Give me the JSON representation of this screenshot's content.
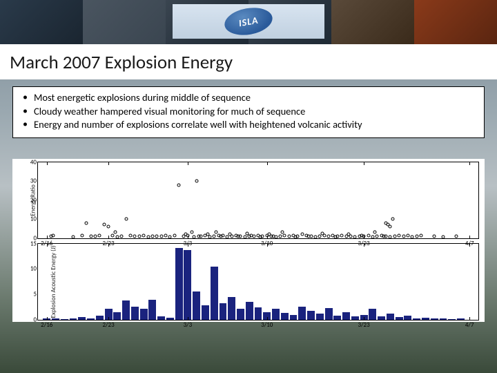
{
  "header": {
    "logo_text": "ISLA"
  },
  "title": "March 2007 Explosion Energy",
  "bullets": [
    "Most energetic explosions during middle of sequence",
    "Cloudy weather hampered visual monitoring for much of sequence",
    "Energy and number of explosions correlate well with heightened volcanic activity"
  ],
  "x_axis": {
    "dates": [
      "2/16",
      "2/23",
      "3/3",
      "3/10",
      "3/23",
      "4/7"
    ],
    "positions_pct": [
      2,
      16,
      34,
      52,
      74,
      98
    ]
  },
  "scatter_chart": {
    "y_label": "Energy Ratio",
    "ylim": [
      0,
      40
    ],
    "y_ticks": [
      0,
      10,
      20,
      30,
      40
    ],
    "marker_border": "#000000",
    "points": [
      {
        "x": 3,
        "y": 1
      },
      {
        "x": 3.5,
        "y": 1.5
      },
      {
        "x": 8,
        "y": 0.8
      },
      {
        "x": 10,
        "y": 1.2
      },
      {
        "x": 11,
        "y": 8
      },
      {
        "x": 12,
        "y": 1
      },
      {
        "x": 13,
        "y": 0.9
      },
      {
        "x": 14,
        "y": 1.3
      },
      {
        "x": 15,
        "y": 7
      },
      {
        "x": 16,
        "y": 6
      },
      {
        "x": 17,
        "y": 1.5
      },
      {
        "x": 17.5,
        "y": 3
      },
      {
        "x": 18,
        "y": 0.8
      },
      {
        "x": 19,
        "y": 1
      },
      {
        "x": 20,
        "y": 10
      },
      {
        "x": 21,
        "y": 1.2
      },
      {
        "x": 22,
        "y": 0.9
      },
      {
        "x": 23,
        "y": 1
      },
      {
        "x": 24,
        "y": 1.3
      },
      {
        "x": 25,
        "y": 0.8
      },
      {
        "x": 26,
        "y": 1.1
      },
      {
        "x": 27,
        "y": 1
      },
      {
        "x": 28,
        "y": 0.9
      },
      {
        "x": 29,
        "y": 1.2
      },
      {
        "x": 30,
        "y": 0.8
      },
      {
        "x": 31,
        "y": 1.5
      },
      {
        "x": 32,
        "y": 28
      },
      {
        "x": 33,
        "y": 1
      },
      {
        "x": 33.5,
        "y": 2
      },
      {
        "x": 34,
        "y": 1.3
      },
      {
        "x": 35,
        "y": 3
      },
      {
        "x": 35.5,
        "y": 0.8
      },
      {
        "x": 36,
        "y": 30
      },
      {
        "x": 36.5,
        "y": 1
      },
      {
        "x": 37,
        "y": 0.9
      },
      {
        "x": 38,
        "y": 1.4
      },
      {
        "x": 38.5,
        "y": 2
      },
      {
        "x": 39,
        "y": 0.8
      },
      {
        "x": 40,
        "y": 1
      },
      {
        "x": 40.5,
        "y": 3
      },
      {
        "x": 41,
        "y": 1.2
      },
      {
        "x": 41.5,
        "y": 0.9
      },
      {
        "x": 42,
        "y": 1.5
      },
      {
        "x": 43,
        "y": 0.8
      },
      {
        "x": 43.5,
        "y": 2
      },
      {
        "x": 44,
        "y": 1
      },
      {
        "x": 45,
        "y": 1.3
      },
      {
        "x": 45.5,
        "y": 0.9
      },
      {
        "x": 46,
        "y": 1.1
      },
      {
        "x": 47,
        "y": 0.8
      },
      {
        "x": 47.5,
        "y": 2.5
      },
      {
        "x": 48,
        "y": 1
      },
      {
        "x": 48.5,
        "y": 1.2
      },
      {
        "x": 49,
        "y": 0.9
      },
      {
        "x": 50,
        "y": 1.4
      },
      {
        "x": 50.5,
        "y": 0.8
      },
      {
        "x": 51,
        "y": 1
      },
      {
        "x": 52,
        "y": 1.3
      },
      {
        "x": 52.5,
        "y": 2
      },
      {
        "x": 53,
        "y": 0.9
      },
      {
        "x": 53.5,
        "y": 1.1
      },
      {
        "x": 54,
        "y": 0.8
      },
      {
        "x": 55,
        "y": 1
      },
      {
        "x": 55.5,
        "y": 3
      },
      {
        "x": 56,
        "y": 1.2
      },
      {
        "x": 57,
        "y": 0.9
      },
      {
        "x": 58,
        "y": 1.4
      },
      {
        "x": 58.5,
        "y": 0.8
      },
      {
        "x": 59,
        "y": 1
      },
      {
        "x": 60,
        "y": 2
      },
      {
        "x": 61,
        "y": 1.3
      },
      {
        "x": 61.5,
        "y": 0.9
      },
      {
        "x": 62,
        "y": 1.1
      },
      {
        "x": 63,
        "y": 0.8
      },
      {
        "x": 64,
        "y": 1
      },
      {
        "x": 64.5,
        "y": 2.5
      },
      {
        "x": 65,
        "y": 1.2
      },
      {
        "x": 66,
        "y": 0.9
      },
      {
        "x": 67,
        "y": 1.4
      },
      {
        "x": 67.5,
        "y": 0.8
      },
      {
        "x": 68,
        "y": 1
      },
      {
        "x": 69,
        "y": 1.3
      },
      {
        "x": 70,
        "y": 0.9
      },
      {
        "x": 70.5,
        "y": 2
      },
      {
        "x": 71,
        "y": 1.1
      },
      {
        "x": 72,
        "y": 0.8
      },
      {
        "x": 73,
        "y": 1
      },
      {
        "x": 73.5,
        "y": 1.2
      },
      {
        "x": 74,
        "y": 0.9
      },
      {
        "x": 75,
        "y": 1.4
      },
      {
        "x": 76,
        "y": 0.8
      },
      {
        "x": 76.5,
        "y": 3
      },
      {
        "x": 77,
        "y": 1
      },
      {
        "x": 78,
        "y": 1.3
      },
      {
        "x": 78.5,
        "y": 0.9
      },
      {
        "x": 79,
        "y": 1.1
      },
      {
        "x": 79,
        "y": 8
      },
      {
        "x": 79.5,
        "y": 7
      },
      {
        "x": 80,
        "y": 0.8
      },
      {
        "x": 80,
        "y": 6
      },
      {
        "x": 80.5,
        "y": 10
      },
      {
        "x": 81,
        "y": 1
      },
      {
        "x": 82,
        "y": 1.2
      },
      {
        "x": 83,
        "y": 0.9
      },
      {
        "x": 84,
        "y": 1.4
      },
      {
        "x": 85,
        "y": 0.8
      },
      {
        "x": 86,
        "y": 1
      },
      {
        "x": 87,
        "y": 1.3
      },
      {
        "x": 90,
        "y": 1
      },
      {
        "x": 92,
        "y": 0.8
      },
      {
        "x": 95,
        "y": 1
      }
    ]
  },
  "bar_chart": {
    "y_label": "Explosion Acoustic Energy (J)",
    "ylim": [
      0,
      15
    ],
    "y_ticks": [
      0,
      5,
      10,
      15
    ],
    "bar_color": "#1a237e",
    "bar_width_pct": 1.7,
    "bars": [
      {
        "x": 2,
        "y": 0.3
      },
      {
        "x": 4,
        "y": 0.2
      },
      {
        "x": 6,
        "y": 0.1
      },
      {
        "x": 8,
        "y": 0.2
      },
      {
        "x": 10,
        "y": 0.5
      },
      {
        "x": 12,
        "y": 0.3
      },
      {
        "x": 14,
        "y": 0.8
      },
      {
        "x": 16,
        "y": 2.2
      },
      {
        "x": 18,
        "y": 1.5
      },
      {
        "x": 20,
        "y": 3.8
      },
      {
        "x": 22,
        "y": 2.5
      },
      {
        "x": 24,
        "y": 2.1
      },
      {
        "x": 26,
        "y": 3.9
      },
      {
        "x": 28,
        "y": 0.6
      },
      {
        "x": 30,
        "y": 0.4
      },
      {
        "x": 32,
        "y": 14.2
      },
      {
        "x": 34,
        "y": 13.8
      },
      {
        "x": 36,
        "y": 5.5
      },
      {
        "x": 38,
        "y": 2.8
      },
      {
        "x": 40,
        "y": 10.5
      },
      {
        "x": 42,
        "y": 3.2
      },
      {
        "x": 44,
        "y": 4.5
      },
      {
        "x": 46,
        "y": 2.1
      },
      {
        "x": 48,
        "y": 3.5
      },
      {
        "x": 50,
        "y": 2.4
      },
      {
        "x": 52,
        "y": 1.5
      },
      {
        "x": 54,
        "y": 2.2
      },
      {
        "x": 56,
        "y": 1.3
      },
      {
        "x": 58,
        "y": 0.9
      },
      {
        "x": 60,
        "y": 2.5
      },
      {
        "x": 62,
        "y": 1.8
      },
      {
        "x": 64,
        "y": 1.2
      },
      {
        "x": 66,
        "y": 2.3
      },
      {
        "x": 68,
        "y": 0.8
      },
      {
        "x": 70,
        "y": 1.5
      },
      {
        "x": 72,
        "y": 0.6
      },
      {
        "x": 74,
        "y": 0.9
      },
      {
        "x": 76,
        "y": 2.1
      },
      {
        "x": 78,
        "y": 0.7
      },
      {
        "x": 80,
        "y": 1.2
      },
      {
        "x": 82,
        "y": 0.5
      },
      {
        "x": 84,
        "y": 0.8
      },
      {
        "x": 86,
        "y": 0.3
      },
      {
        "x": 88,
        "y": 0.4
      },
      {
        "x": 90,
        "y": 0.2
      },
      {
        "x": 92,
        "y": 0.3
      },
      {
        "x": 94,
        "y": 0.1
      },
      {
        "x": 96,
        "y": 0.2
      }
    ]
  }
}
